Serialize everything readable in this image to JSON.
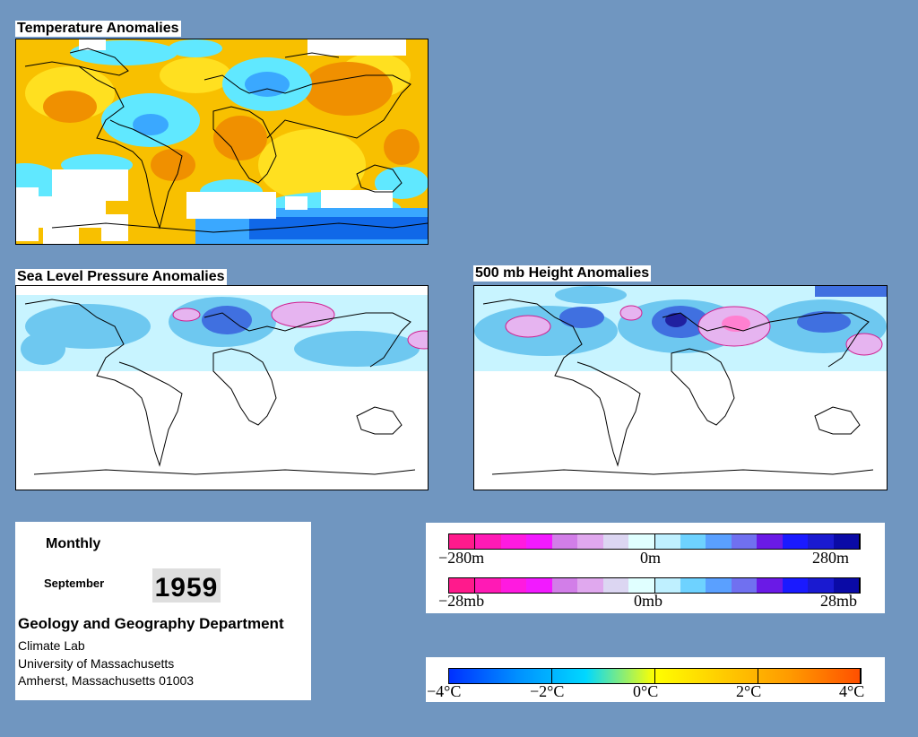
{
  "panels": {
    "temperature": {
      "title": "Temperature Anomalies"
    },
    "slp": {
      "title": "Sea Level Pressure Anomalies"
    },
    "height": {
      "title": "500 mb Height Anomalies"
    }
  },
  "info": {
    "period": "Monthly",
    "month": "September",
    "year": "1959",
    "department": "Geology and Geography Department",
    "lines": [
      "Climate Lab",
      "University of Massachusetts",
      "Amherst, Massachusetts 01003"
    ]
  },
  "legends": {
    "height_scale": {
      "min": "−280m",
      "mid": "0m",
      "max": "280m"
    },
    "pressure_scale": {
      "min": "−28mb",
      "mid": "0mb",
      "max": "28mb"
    },
    "temperature_scale": {
      "labels": [
        "−4°C",
        "−2°C",
        "0°C",
        "2°C",
        "4°C"
      ]
    }
  },
  "colors": {
    "background": "#7096c0",
    "anomaly_scale": [
      "#ff1a8c",
      "#ff1ab5",
      "#ff1ae0",
      "#f21aff",
      "#d27ee8",
      "#e0a8ee",
      "#dcd6f2",
      "#e0ffff",
      "#bff0ff",
      "#6ed2ff",
      "#5aa0ff",
      "#7070f0",
      "#6a1ae6",
      "#1a1aff",
      "#1a1ad0",
      "#0a0aa6"
    ],
    "temperature_scale": [
      "#0030ff",
      "#0090ff",
      "#00d8ff",
      "#ffff00",
      "#ffcc00",
      "#ff9900",
      "#ff5000"
    ]
  }
}
